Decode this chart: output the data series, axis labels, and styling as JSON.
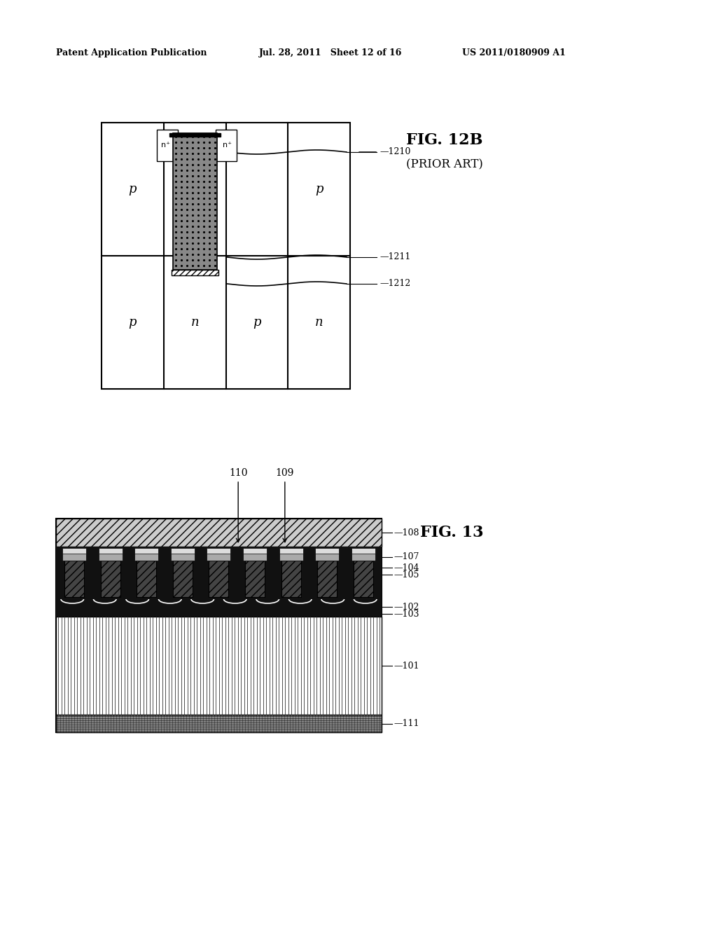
{
  "header_left": "Patent Application Publication",
  "header_mid": "Jul. 28, 2011   Sheet 12 of 16",
  "header_right": "US 2011/0180909 A1",
  "fig12b_title": "FIG. 12B",
  "fig12b_subtitle": "(PRIOR ART)",
  "fig13_title": "FIG. 13",
  "bg_color": "#ffffff",
  "text_color": "#000000",
  "labels_12b": [
    "1210",
    "1211",
    "1212"
  ],
  "labels_13": [
    "108",
    "107",
    "104",
    "105",
    "102",
    "103",
    "101",
    "111"
  ],
  "labels_13_top": [
    "110",
    "109"
  ]
}
